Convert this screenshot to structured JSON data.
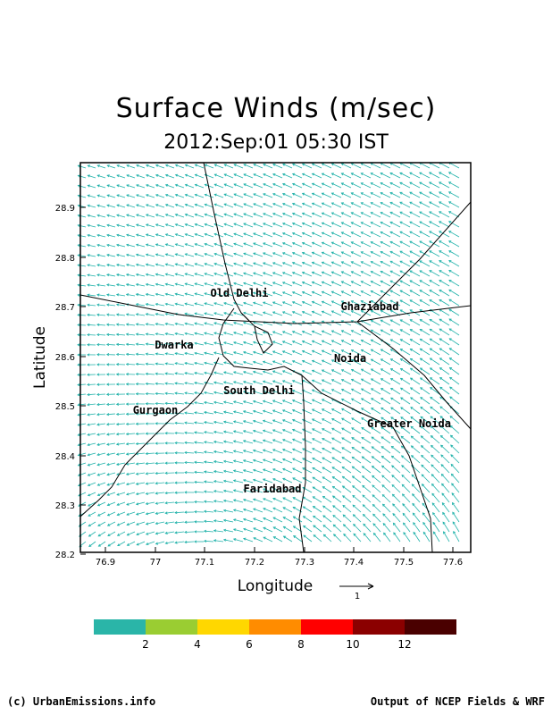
{
  "title": "Surface Winds (m/sec)",
  "subtitle": "2012:Sep:01 05:30 IST",
  "axes": {
    "xlabel": "Longitude",
    "ylabel": "Latitude",
    "xticks": [
      "76.9",
      "77",
      "77.1",
      "77.2",
      "77.3",
      "77.4",
      "77.5",
      "77.6"
    ],
    "yticks": [
      "28.9",
      "28.8",
      "28.7",
      "28.6",
      "28.5",
      "28.4",
      "28.3",
      "28.2"
    ]
  },
  "reference_vector": {
    "label": "1"
  },
  "cities": [
    {
      "name": "Old Delhi"
    },
    {
      "name": "Ghaziabad"
    },
    {
      "name": "Dwarka"
    },
    {
      "name": "Noida"
    },
    {
      "name": "South Delhi"
    },
    {
      "name": "Gurgaon"
    },
    {
      "name": "Greater Noida"
    },
    {
      "name": "Faridabad"
    }
  ],
  "colorbar": {
    "colors": [
      "#2ab5a8",
      "#9acd32",
      "#ffd700",
      "#ff8c00",
      "#ff0000",
      "#8b0000",
      "#4a0000"
    ],
    "labels": [
      "2",
      "4",
      "6",
      "8",
      "10",
      "12"
    ]
  },
  "vector_color": "#20b2aa",
  "footer": {
    "left": "(c) UrbanEmissions.info",
    "right": "Output of NCEP Fields & WRF"
  }
}
